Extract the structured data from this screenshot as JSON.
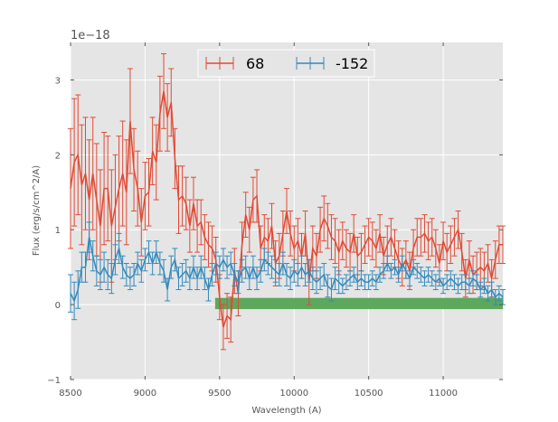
{
  "chart_data": {
    "type": "line",
    "title": "",
    "xlabel": "Wavelength (A)",
    "ylabel": "Flux (erg/s/cm^2/A)",
    "xlim": [
      8500,
      11400
    ],
    "ylim": [
      -1,
      3.5
    ],
    "y_scale_label": "1e−18",
    "x_ticks": [
      8500,
      9000,
      9500,
      10000,
      10500,
      11000
    ],
    "x_tick_labels": [
      "8500",
      "9000",
      "9500",
      "10000",
      "10500",
      "11000"
    ],
    "y_ticks": [
      -1,
      0,
      1,
      2,
      3
    ],
    "y_tick_labels": [
      "−1",
      "0",
      "1",
      "2",
      "3"
    ],
    "grid": true,
    "legend_position": "top-center",
    "colors": {
      "series_68": "#e24a33",
      "series_neg152": "#348abd",
      "band": "#5ca85c",
      "plot_bg": "#e5e5e5",
      "grid": "#ffffff"
    },
    "band": {
      "x_start": 9470,
      "x_end": 11400,
      "y_low": -0.06,
      "y_high": 0.09
    },
    "series": [
      {
        "name": "68",
        "x": [
          8500,
          8525,
          8550,
          8575,
          8600,
          8625,
          8650,
          8675,
          8700,
          8725,
          8750,
          8775,
          8800,
          8825,
          8850,
          8875,
          8900,
          8925,
          8950,
          8975,
          9000,
          9025,
          9050,
          9075,
          9100,
          9125,
          9150,
          9175,
          9200,
          9225,
          9250,
          9275,
          9300,
          9325,
          9350,
          9375,
          9400,
          9425,
          9450,
          9475,
          9500,
          9525,
          9550,
          9575,
          9600,
          9625,
          9650,
          9675,
          9700,
          9725,
          9750,
          9775,
          9800,
          9825,
          9850,
          9875,
          9900,
          9925,
          9950,
          9975,
          10000,
          10025,
          10050,
          10075,
          10100,
          10125,
          10150,
          10175,
          10200,
          10225,
          10250,
          10275,
          10300,
          10325,
          10350,
          10375,
          10400,
          10425,
          10450,
          10475,
          10500,
          10525,
          10550,
          10575,
          10600,
          10625,
          10650,
          10675,
          10700,
          10725,
          10750,
          10775,
          10800,
          10825,
          10850,
          10875,
          10900,
          10925,
          10950,
          10975,
          11000,
          11025,
          11050,
          11075,
          11100,
          11125,
          11150,
          11175,
          11200,
          11225,
          11250,
          11275,
          11300,
          11325,
          11350,
          11375,
          11400
        ],
        "y": [
          1.55,
          1.9,
          2.0,
          1.6,
          1.75,
          1.4,
          1.75,
          1.4,
          1.05,
          1.55,
          1.55,
          1.05,
          1.3,
          1.55,
          1.75,
          1.5,
          2.45,
          1.8,
          1.55,
          1.1,
          1.45,
          1.5,
          2.05,
          1.9,
          2.55,
          2.85,
          2.5,
          2.7,
          1.95,
          1.4,
          1.45,
          1.35,
          1.05,
          1.35,
          1.05,
          1.1,
          0.9,
          0.8,
          0.75,
          0.6,
          0.1,
          -0.3,
          -0.15,
          -0.2,
          0.45,
          0.15,
          0.8,
          1.2,
          1.0,
          1.4,
          1.45,
          0.75,
          0.9,
          0.85,
          1.05,
          0.55,
          0.65,
          0.95,
          1.25,
          0.95,
          0.75,
          0.85,
          0.65,
          0.95,
          0.3,
          0.75,
          0.65,
          1.0,
          1.15,
          1.05,
          0.9,
          0.85,
          0.7,
          0.85,
          0.75,
          0.7,
          0.95,
          0.65,
          0.7,
          0.8,
          0.9,
          0.85,
          0.75,
          0.95,
          0.65,
          0.8,
          0.9,
          0.75,
          0.6,
          0.5,
          0.6,
          0.45,
          0.75,
          0.9,
          0.9,
          0.95,
          0.85,
          0.9,
          0.75,
          0.55,
          0.85,
          0.7,
          0.8,
          0.9,
          1.0,
          0.7,
          0.35,
          0.6,
          0.4,
          0.45,
          0.5,
          0.45,
          0.55,
          0.35,
          0.6,
          0.8,
          0.8
        ],
        "yerr": [
          0.8,
          0.85,
          0.8,
          0.8,
          0.75,
          0.8,
          0.75,
          0.75,
          0.75,
          0.75,
          0.7,
          0.75,
          0.7,
          0.7,
          0.7,
          0.7,
          0.7,
          0.55,
          0.5,
          0.45,
          0.45,
          0.45,
          0.45,
          0.5,
          0.5,
          0.5,
          0.45,
          0.45,
          0.4,
          0.45,
          0.4,
          0.35,
          0.35,
          0.35,
          0.35,
          0.3,
          0.3,
          0.3,
          0.3,
          0.3,
          0.3,
          0.3,
          0.3,
          0.3,
          0.3,
          0.3,
          0.3,
          0.3,
          0.3,
          0.3,
          0.35,
          0.3,
          0.3,
          0.3,
          0.3,
          0.3,
          0.3,
          0.3,
          0.3,
          0.3,
          0.3,
          0.3,
          0.3,
          0.3,
          0.3,
          0.3,
          0.3,
          0.3,
          0.3,
          0.3,
          0.3,
          0.3,
          0.3,
          0.25,
          0.25,
          0.25,
          0.25,
          0.25,
          0.25,
          0.25,
          0.25,
          0.25,
          0.25,
          0.25,
          0.25,
          0.25,
          0.25,
          0.25,
          0.25,
          0.25,
          0.25,
          0.25,
          0.25,
          0.25,
          0.25,
          0.25,
          0.25,
          0.25,
          0.25,
          0.25,
          0.25,
          0.25,
          0.25,
          0.25,
          0.25,
          0.25,
          0.25,
          0.25,
          0.25,
          0.25,
          0.25,
          0.25,
          0.25,
          0.25,
          0.25,
          0.25,
          0.25
        ]
      },
      {
        "name": "-152",
        "x": [
          8500,
          8525,
          8550,
          8575,
          8600,
          8625,
          8650,
          8675,
          8700,
          8725,
          8750,
          8775,
          8800,
          8825,
          8850,
          8875,
          8900,
          8925,
          8950,
          8975,
          9000,
          9025,
          9050,
          9075,
          9100,
          9125,
          9150,
          9175,
          9200,
          9225,
          9250,
          9275,
          9300,
          9325,
          9350,
          9375,
          9400,
          9425,
          9450,
          9475,
          9500,
          9525,
          9550,
          9575,
          9600,
          9625,
          9650,
          9675,
          9700,
          9725,
          9750,
          9775,
          9800,
          9825,
          9850,
          9875,
          9900,
          9925,
          9950,
          9975,
          10000,
          10025,
          10050,
          10075,
          10100,
          10125,
          10150,
          10175,
          10200,
          10225,
          10250,
          10275,
          10300,
          10325,
          10350,
          10375,
          10400,
          10425,
          10450,
          10475,
          10500,
          10525,
          10550,
          10575,
          10600,
          10625,
          10650,
          10675,
          10700,
          10725,
          10750,
          10775,
          10800,
          10825,
          10850,
          10875,
          10900,
          10925,
          10950,
          10975,
          11000,
          11025,
          11050,
          11075,
          11100,
          11125,
          11150,
          11175,
          11200,
          11225,
          11250,
          11275,
          11300,
          11325,
          11350,
          11375,
          11400
        ],
        "y": [
          0.15,
          0.05,
          0.2,
          0.5,
          0.5,
          0.9,
          0.65,
          0.45,
          0.4,
          0.5,
          0.4,
          0.35,
          0.6,
          0.75,
          0.5,
          0.4,
          0.35,
          0.4,
          0.55,
          0.45,
          0.6,
          0.7,
          0.55,
          0.7,
          0.55,
          0.45,
          0.2,
          0.5,
          0.6,
          0.35,
          0.4,
          0.45,
          0.35,
          0.5,
          0.35,
          0.5,
          0.35,
          0.2,
          0.4,
          0.55,
          0.5,
          0.6,
          0.5,
          0.55,
          0.4,
          0.3,
          0.45,
          0.5,
          0.35,
          0.5,
          0.35,
          0.45,
          0.6,
          0.55,
          0.5,
          0.45,
          0.4,
          0.55,
          0.4,
          0.35,
          0.45,
          0.4,
          0.5,
          0.4,
          0.45,
          0.35,
          0.3,
          0.35,
          0.4,
          0.25,
          0.2,
          0.35,
          0.3,
          0.25,
          0.3,
          0.35,
          0.4,
          0.3,
          0.35,
          0.3,
          0.3,
          0.35,
          0.3,
          0.4,
          0.45,
          0.55,
          0.45,
          0.5,
          0.4,
          0.55,
          0.45,
          0.35,
          0.5,
          0.45,
          0.4,
          0.35,
          0.4,
          0.35,
          0.3,
          0.35,
          0.25,
          0.3,
          0.35,
          0.3,
          0.25,
          0.3,
          0.3,
          0.25,
          0.35,
          0.3,
          0.2,
          0.25,
          0.15,
          0.2,
          0.1,
          0.15,
          0.1
        ],
        "yerr": [
          0.25,
          0.25,
          0.25,
          0.2,
          0.2,
          0.2,
          0.2,
          0.2,
          0.2,
          0.2,
          0.2,
          0.2,
          0.2,
          0.2,
          0.15,
          0.15,
          0.15,
          0.15,
          0.15,
          0.15,
          0.15,
          0.15,
          0.15,
          0.15,
          0.15,
          0.15,
          0.15,
          0.15,
          0.15,
          0.15,
          0.15,
          0.15,
          0.15,
          0.15,
          0.15,
          0.15,
          0.15,
          0.15,
          0.15,
          0.15,
          0.15,
          0.15,
          0.15,
          0.15,
          0.15,
          0.15,
          0.15,
          0.15,
          0.15,
          0.15,
          0.15,
          0.15,
          0.15,
          0.15,
          0.15,
          0.15,
          0.15,
          0.15,
          0.15,
          0.15,
          0.15,
          0.15,
          0.15,
          0.15,
          0.15,
          0.15,
          0.15,
          0.15,
          0.15,
          0.15,
          0.15,
          0.15,
          0.15,
          0.1,
          0.1,
          0.1,
          0.1,
          0.1,
          0.1,
          0.1,
          0.1,
          0.1,
          0.1,
          0.1,
          0.1,
          0.1,
          0.1,
          0.1,
          0.1,
          0.1,
          0.1,
          0.1,
          0.1,
          0.1,
          0.1,
          0.1,
          0.1,
          0.1,
          0.1,
          0.1,
          0.1,
          0.1,
          0.1,
          0.1,
          0.1,
          0.1,
          0.1,
          0.1,
          0.1,
          0.1,
          0.1,
          0.1,
          0.1,
          0.1,
          0.1,
          0.1,
          0.1
        ]
      }
    ]
  }
}
